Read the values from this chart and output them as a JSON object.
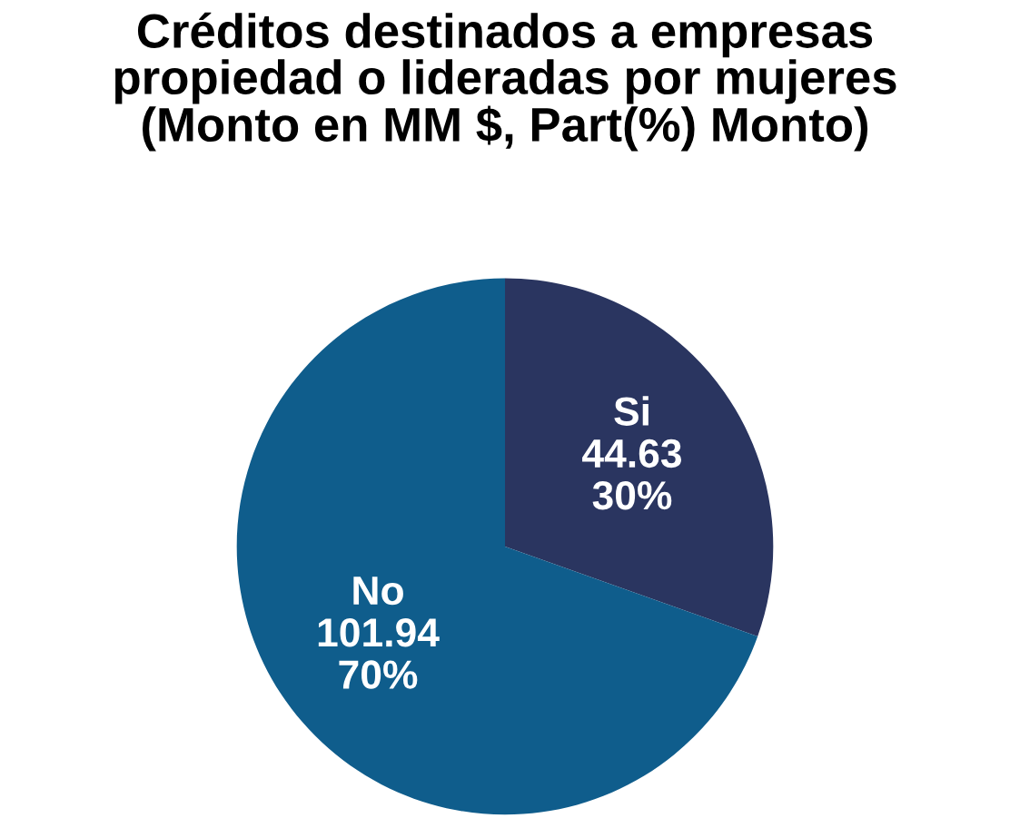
{
  "chart_data": {
    "type": "pie",
    "title": "Créditos destinados a empresas\npropiedad o lideradas por mujeres\n(Monto en MM $, Part(%) Monto)",
    "categories": [
      "Si",
      "No"
    ],
    "values": [
      44.63,
      101.94
    ],
    "colors": [
      "#2a3560",
      "#0f5d8c"
    ],
    "value_labels": [
      "44.63\n30%",
      "101.94\n70%"
    ],
    "legend": false
  }
}
